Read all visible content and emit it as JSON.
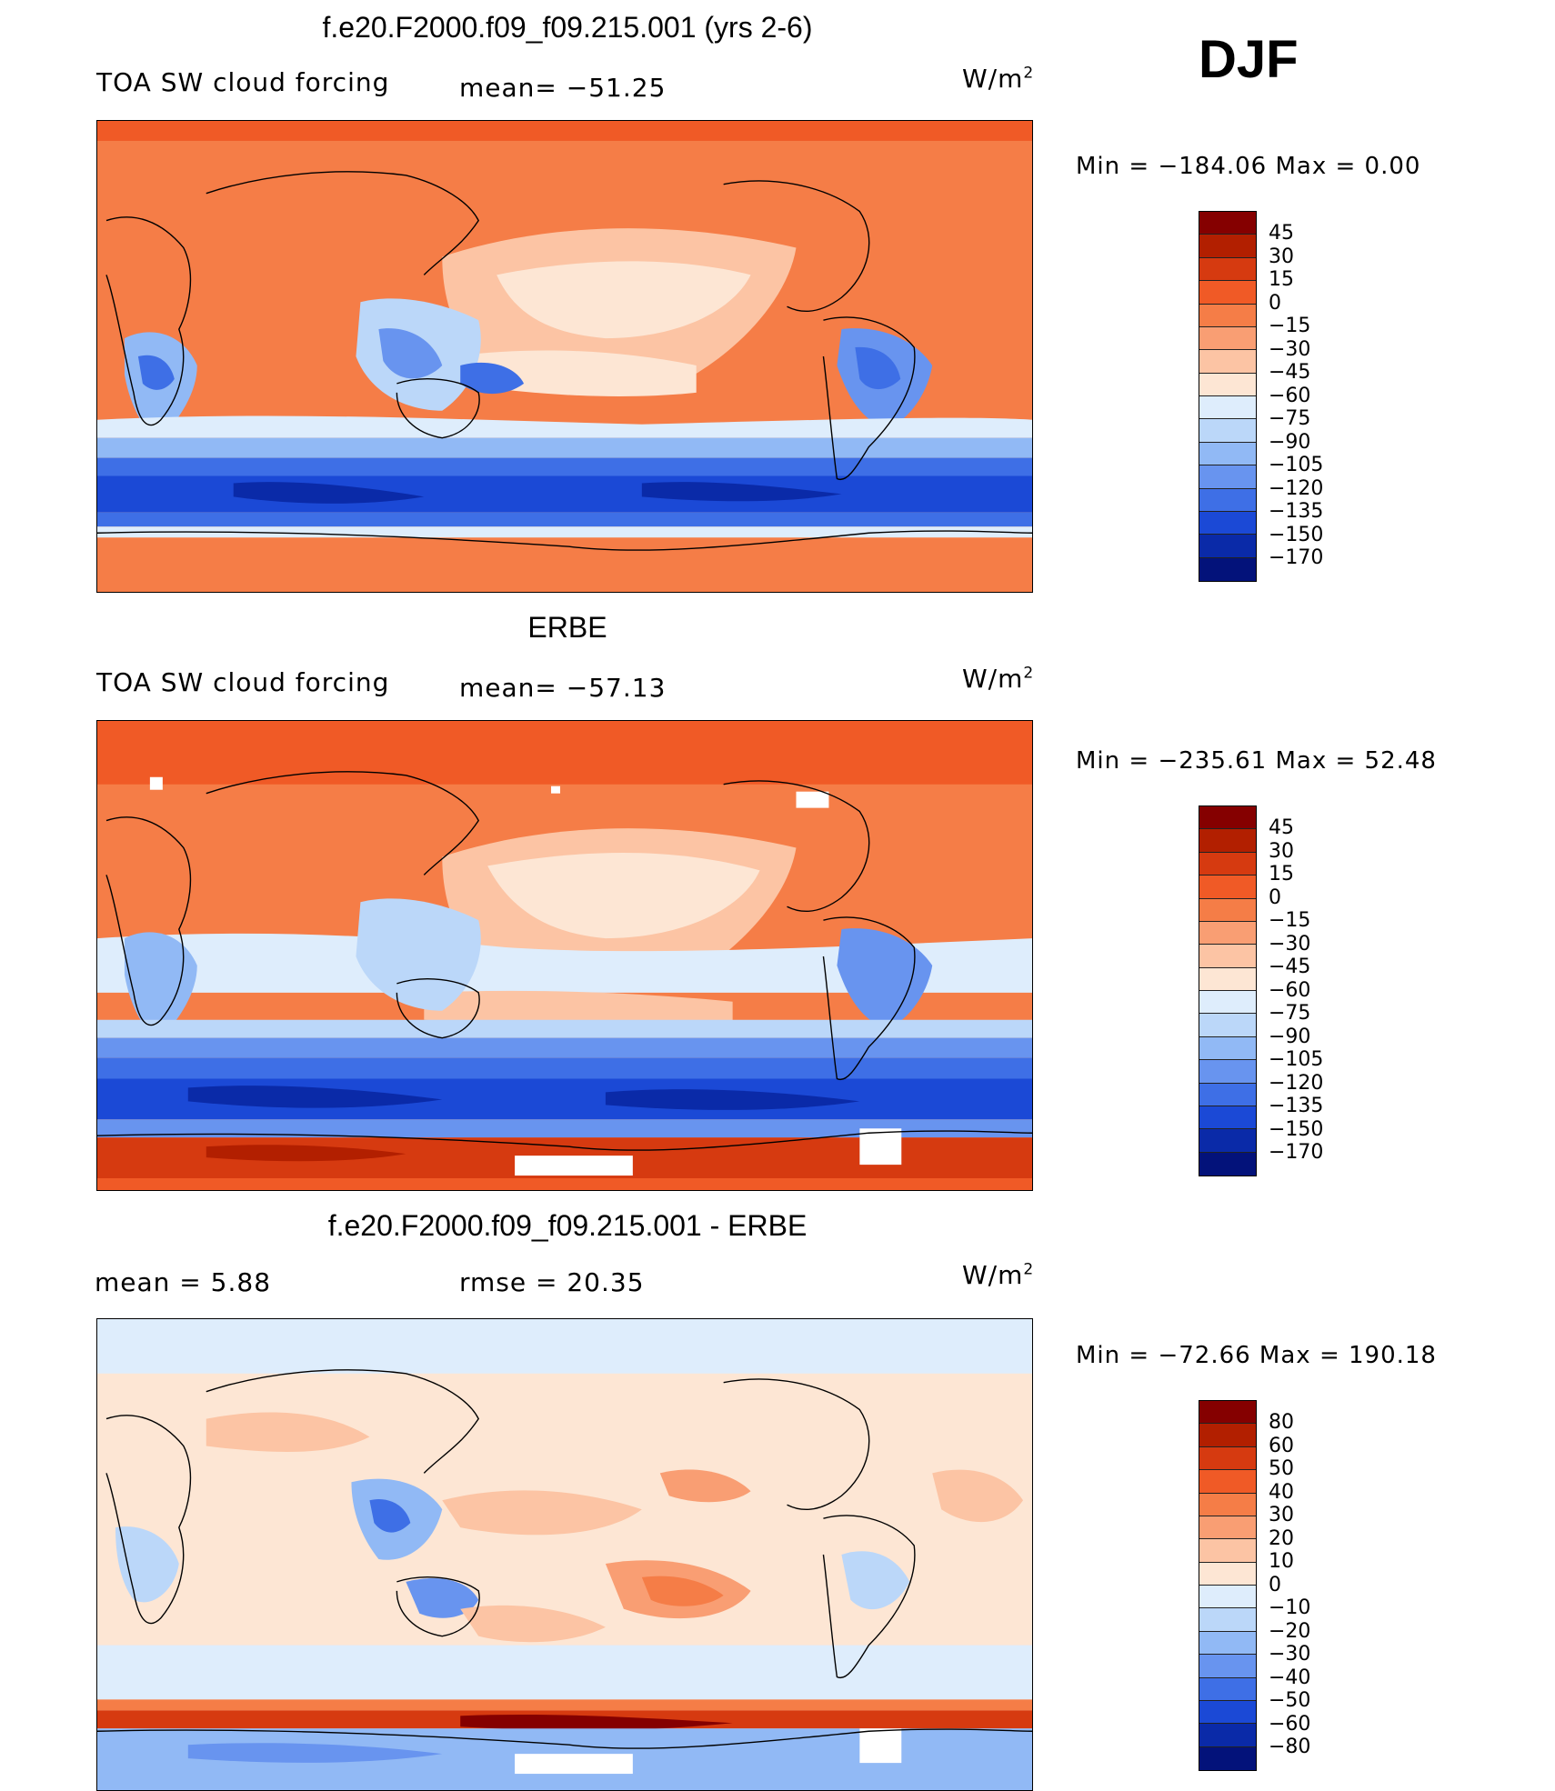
{
  "season": "DJF",
  "panels": [
    {
      "title": "f.e20.F2000.f09_f09.215.001 (yrs 2-6)",
      "left_label": "TOA SW cloud forcing",
      "center_label": "mean=  −51.25",
      "units": "W/m",
      "units_sup": "2",
      "minmax": "Min  =  −184.06  Max  =     0.00",
      "colorbar_labels": [
        "45",
        "30",
        "15",
        "0",
        "−15",
        "−30",
        "−45",
        "−60",
        "−75",
        "−90",
        "−105",
        "−120",
        "−135",
        "−150",
        "−170"
      ],
      "colors": [
        "#850000",
        "#b21f00",
        "#d63a10",
        "#f05a26",
        "#f57d47",
        "#f99e73",
        "#fcc4a4",
        "#fde6d4",
        "#deedfc",
        "#bbd7f9",
        "#91b9f5",
        "#6894ef",
        "#3e6fe6",
        "#1b49d6",
        "#0a2aa8",
        "#03127a"
      ]
    },
    {
      "title": "ERBE",
      "left_label": "TOA SW cloud forcing",
      "center_label": "mean=  −57.13",
      "units": "W/m",
      "units_sup": "2",
      "minmax": "Min  =  −235.61  Max  =   52.48",
      "colorbar_labels": [
        "45",
        "30",
        "15",
        "0",
        "−15",
        "−30",
        "−45",
        "−60",
        "−75",
        "−90",
        "−105",
        "−120",
        "−135",
        "−150",
        "−170"
      ],
      "colors": [
        "#850000",
        "#b21f00",
        "#d63a10",
        "#f05a26",
        "#f57d47",
        "#f99e73",
        "#fcc4a4",
        "#fde6d4",
        "#deedfc",
        "#bbd7f9",
        "#91b9f5",
        "#6894ef",
        "#3e6fe6",
        "#1b49d6",
        "#0a2aa8",
        "#03127a"
      ]
    },
    {
      "title": "f.e20.F2000.f09_f09.215.001 - ERBE",
      "left_label": "mean  =      5.88",
      "center_label": "rmse  =    20.35",
      "units": "W/m",
      "units_sup": "2",
      "minmax": "Min  =  −72.66  Max  =  190.18",
      "colorbar_labels": [
        "80",
        "60",
        "50",
        "40",
        "30",
        "20",
        "10",
        "0",
        "−10",
        "−20",
        "−30",
        "−40",
        "−50",
        "−60",
        "−80"
      ],
      "colors": [
        "#850000",
        "#b21f00",
        "#d63a10",
        "#f05a26",
        "#f57d47",
        "#f99e73",
        "#fcc4a4",
        "#fde6d4",
        "#deedfc",
        "#bbd7f9",
        "#91b9f5",
        "#6894ef",
        "#3e6fe6",
        "#1b49d6",
        "#0a2aa8",
        "#03127a"
      ]
    }
  ]
}
